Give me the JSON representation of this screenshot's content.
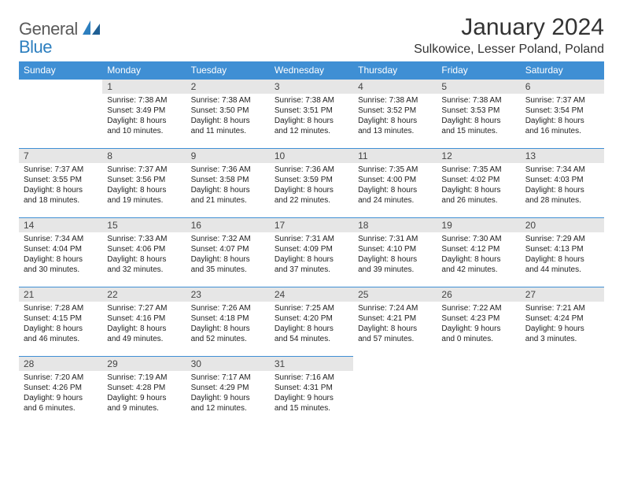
{
  "brand": {
    "part1": "General",
    "part2": "Blue"
  },
  "title": "January 2024",
  "location": "Sulkowice, Lesser Poland, Poland",
  "colors": {
    "header_bg": "#3f8fd4",
    "header_fg": "#ffffff",
    "daynum_bg": "#e6e6e6",
    "border": "#3f8fd4",
    "logo_gray": "#5a5a5a",
    "logo_blue": "#2d7fbf",
    "text": "#222222",
    "page_bg": "#ffffff"
  },
  "fonts": {
    "title_pt": 30,
    "location_pt": 16,
    "head_pt": 12,
    "daynum_pt": 12,
    "body_pt": 10
  },
  "weekdays": [
    "Sunday",
    "Monday",
    "Tuesday",
    "Wednesday",
    "Thursday",
    "Friday",
    "Saturday"
  ],
  "weeks": [
    [
      null,
      {
        "n": "1",
        "sr": "Sunrise: 7:38 AM",
        "ss": "Sunset: 3:49 PM",
        "dl": "Daylight: 8 hours and 10 minutes."
      },
      {
        "n": "2",
        "sr": "Sunrise: 7:38 AM",
        "ss": "Sunset: 3:50 PM",
        "dl": "Daylight: 8 hours and 11 minutes."
      },
      {
        "n": "3",
        "sr": "Sunrise: 7:38 AM",
        "ss": "Sunset: 3:51 PM",
        "dl": "Daylight: 8 hours and 12 minutes."
      },
      {
        "n": "4",
        "sr": "Sunrise: 7:38 AM",
        "ss": "Sunset: 3:52 PM",
        "dl": "Daylight: 8 hours and 13 minutes."
      },
      {
        "n": "5",
        "sr": "Sunrise: 7:38 AM",
        "ss": "Sunset: 3:53 PM",
        "dl": "Daylight: 8 hours and 15 minutes."
      },
      {
        "n": "6",
        "sr": "Sunrise: 7:37 AM",
        "ss": "Sunset: 3:54 PM",
        "dl": "Daylight: 8 hours and 16 minutes."
      }
    ],
    [
      {
        "n": "7",
        "sr": "Sunrise: 7:37 AM",
        "ss": "Sunset: 3:55 PM",
        "dl": "Daylight: 8 hours and 18 minutes."
      },
      {
        "n": "8",
        "sr": "Sunrise: 7:37 AM",
        "ss": "Sunset: 3:56 PM",
        "dl": "Daylight: 8 hours and 19 minutes."
      },
      {
        "n": "9",
        "sr": "Sunrise: 7:36 AM",
        "ss": "Sunset: 3:58 PM",
        "dl": "Daylight: 8 hours and 21 minutes."
      },
      {
        "n": "10",
        "sr": "Sunrise: 7:36 AM",
        "ss": "Sunset: 3:59 PM",
        "dl": "Daylight: 8 hours and 22 minutes."
      },
      {
        "n": "11",
        "sr": "Sunrise: 7:35 AM",
        "ss": "Sunset: 4:00 PM",
        "dl": "Daylight: 8 hours and 24 minutes."
      },
      {
        "n": "12",
        "sr": "Sunrise: 7:35 AM",
        "ss": "Sunset: 4:02 PM",
        "dl": "Daylight: 8 hours and 26 minutes."
      },
      {
        "n": "13",
        "sr": "Sunrise: 7:34 AM",
        "ss": "Sunset: 4:03 PM",
        "dl": "Daylight: 8 hours and 28 minutes."
      }
    ],
    [
      {
        "n": "14",
        "sr": "Sunrise: 7:34 AM",
        "ss": "Sunset: 4:04 PM",
        "dl": "Daylight: 8 hours and 30 minutes."
      },
      {
        "n": "15",
        "sr": "Sunrise: 7:33 AM",
        "ss": "Sunset: 4:06 PM",
        "dl": "Daylight: 8 hours and 32 minutes."
      },
      {
        "n": "16",
        "sr": "Sunrise: 7:32 AM",
        "ss": "Sunset: 4:07 PM",
        "dl": "Daylight: 8 hours and 35 minutes."
      },
      {
        "n": "17",
        "sr": "Sunrise: 7:31 AM",
        "ss": "Sunset: 4:09 PM",
        "dl": "Daylight: 8 hours and 37 minutes."
      },
      {
        "n": "18",
        "sr": "Sunrise: 7:31 AM",
        "ss": "Sunset: 4:10 PM",
        "dl": "Daylight: 8 hours and 39 minutes."
      },
      {
        "n": "19",
        "sr": "Sunrise: 7:30 AM",
        "ss": "Sunset: 4:12 PM",
        "dl": "Daylight: 8 hours and 42 minutes."
      },
      {
        "n": "20",
        "sr": "Sunrise: 7:29 AM",
        "ss": "Sunset: 4:13 PM",
        "dl": "Daylight: 8 hours and 44 minutes."
      }
    ],
    [
      {
        "n": "21",
        "sr": "Sunrise: 7:28 AM",
        "ss": "Sunset: 4:15 PM",
        "dl": "Daylight: 8 hours and 46 minutes."
      },
      {
        "n": "22",
        "sr": "Sunrise: 7:27 AM",
        "ss": "Sunset: 4:16 PM",
        "dl": "Daylight: 8 hours and 49 minutes."
      },
      {
        "n": "23",
        "sr": "Sunrise: 7:26 AM",
        "ss": "Sunset: 4:18 PM",
        "dl": "Daylight: 8 hours and 52 minutes."
      },
      {
        "n": "24",
        "sr": "Sunrise: 7:25 AM",
        "ss": "Sunset: 4:20 PM",
        "dl": "Daylight: 8 hours and 54 minutes."
      },
      {
        "n": "25",
        "sr": "Sunrise: 7:24 AM",
        "ss": "Sunset: 4:21 PM",
        "dl": "Daylight: 8 hours and 57 minutes."
      },
      {
        "n": "26",
        "sr": "Sunrise: 7:22 AM",
        "ss": "Sunset: 4:23 PM",
        "dl": "Daylight: 9 hours and 0 minutes."
      },
      {
        "n": "27",
        "sr": "Sunrise: 7:21 AM",
        "ss": "Sunset: 4:24 PM",
        "dl": "Daylight: 9 hours and 3 minutes."
      }
    ],
    [
      {
        "n": "28",
        "sr": "Sunrise: 7:20 AM",
        "ss": "Sunset: 4:26 PM",
        "dl": "Daylight: 9 hours and 6 minutes."
      },
      {
        "n": "29",
        "sr": "Sunrise: 7:19 AM",
        "ss": "Sunset: 4:28 PM",
        "dl": "Daylight: 9 hours and 9 minutes."
      },
      {
        "n": "30",
        "sr": "Sunrise: 7:17 AM",
        "ss": "Sunset: 4:29 PM",
        "dl": "Daylight: 9 hours and 12 minutes."
      },
      {
        "n": "31",
        "sr": "Sunrise: 7:16 AM",
        "ss": "Sunset: 4:31 PM",
        "dl": "Daylight: 9 hours and 15 minutes."
      },
      null,
      null,
      null
    ]
  ]
}
